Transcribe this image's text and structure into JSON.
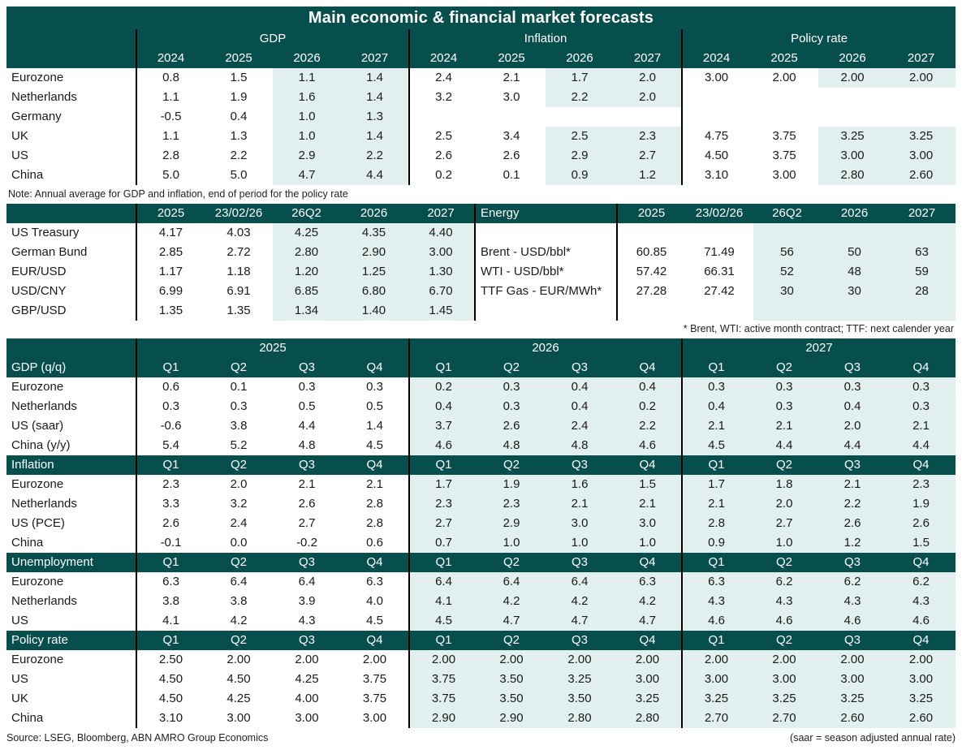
{
  "title": "Main economic & financial market forecasts",
  "colors": {
    "header_teal": "#074f4d",
    "forecast_highlight": "#e1f0ee"
  },
  "annual": {
    "groups": [
      "GDP",
      "Inflation",
      "Policy rate"
    ],
    "years": [
      "2024",
      "2025",
      "2026",
      "2027"
    ],
    "rows": [
      {
        "label": "Eurozone",
        "gdp": [
          "0.8",
          "1.5",
          "1.1",
          "1.4"
        ],
        "inflation": [
          "2.4",
          "2.1",
          "1.7",
          "2.0"
        ],
        "policy": [
          "3.00",
          "2.00",
          "2.00",
          "2.00"
        ]
      },
      {
        "label": "Netherlands",
        "gdp": [
          "1.1",
          "1.9",
          "1.6",
          "1.4"
        ],
        "inflation": [
          "3.2",
          "3.0",
          "2.2",
          "2.0"
        ],
        "policy": [
          "",
          "",
          "",
          ""
        ]
      },
      {
        "label": "Germany",
        "gdp": [
          "-0.5",
          "0.4",
          "1.0",
          "1.3"
        ],
        "inflation": [
          "",
          "",
          "",
          ""
        ],
        "policy": [
          "",
          "",
          "",
          ""
        ]
      },
      {
        "label": "UK",
        "gdp": [
          "1.1",
          "1.3",
          "1.0",
          "1.4"
        ],
        "inflation": [
          "2.5",
          "3.4",
          "2.5",
          "2.3"
        ],
        "policy": [
          "4.75",
          "3.75",
          "3.25",
          "3.25"
        ]
      },
      {
        "label": "US",
        "gdp": [
          "2.8",
          "2.2",
          "2.9",
          "2.2"
        ],
        "inflation": [
          "2.6",
          "2.6",
          "2.9",
          "2.7"
        ],
        "policy": [
          "4.50",
          "3.75",
          "3.00",
          "3.00"
        ]
      },
      {
        "label": "China",
        "gdp": [
          "5.0",
          "5.0",
          "4.7",
          "4.4"
        ],
        "inflation": [
          "0.2",
          "0.1",
          "0.9",
          "1.2"
        ],
        "policy": [
          "3.10",
          "3.00",
          "2.80",
          "2.60"
        ]
      }
    ],
    "note": "Note: Annual average for GDP and inflation, end of period for the policy rate"
  },
  "markets": {
    "headers": [
      "2025",
      "23/02/26",
      "26Q2",
      "2026",
      "2027"
    ],
    "energy_label": "Energy",
    "energy_headers": [
      "2025",
      "23/02/26",
      "26Q2",
      "2026",
      "2027"
    ],
    "rows": [
      {
        "label": "US Treasury",
        "values": [
          "4.17",
          "4.03",
          "4.25",
          "4.35",
          "4.40"
        ],
        "energy_label": "",
        "energy_values": [
          "",
          "",
          "",
          "",
          ""
        ]
      },
      {
        "label": "German Bund",
        "values": [
          "2.85",
          "2.72",
          "2.80",
          "2.90",
          "3.00"
        ],
        "energy_label": "Brent - USD/bbl*",
        "energy_values": [
          "60.85",
          "71.49",
          "56",
          "50",
          "63"
        ]
      },
      {
        "label": "EUR/USD",
        "values": [
          "1.17",
          "1.18",
          "1.20",
          "1.25",
          "1.30"
        ],
        "energy_label": "WTI - USD/bbl*",
        "energy_values": [
          "57.42",
          "66.31",
          "52",
          "48",
          "59"
        ]
      },
      {
        "label": "USD/CNY",
        "values": [
          "6.99",
          "6.91",
          "6.85",
          "6.80",
          "6.70"
        ],
        "energy_label": "TTF Gas - EUR/MWh*",
        "energy_values": [
          "27.28",
          "27.42",
          "30",
          "30",
          "28"
        ]
      },
      {
        "label": "GBP/USD",
        "values": [
          "1.35",
          "1.35",
          "1.34",
          "1.40",
          "1.45"
        ],
        "energy_label": "",
        "energy_values": [
          "",
          "",
          "",
          "",
          ""
        ]
      }
    ],
    "footnote": "* Brent, WTI: active month contract; TTF: next calender year"
  },
  "quarterly": {
    "years": [
      "2025",
      "2026",
      "2027"
    ],
    "quarters": [
      "Q1",
      "Q2",
      "Q3",
      "Q4"
    ],
    "sections": [
      {
        "label": "GDP (q/q)",
        "rows": [
          {
            "label": "Eurozone",
            "values": [
              "0.6",
              "0.1",
              "0.3",
              "0.3",
              "0.2",
              "0.3",
              "0.4",
              "0.4",
              "0.3",
              "0.3",
              "0.3",
              "0.3"
            ]
          },
          {
            "label": "Netherlands",
            "values": [
              "0.3",
              "0.3",
              "0.5",
              "0.5",
              "0.4",
              "0.3",
              "0.4",
              "0.2",
              "0.4",
              "0.3",
              "0.4",
              "0.3"
            ]
          },
          {
            "label": "US (saar)",
            "values": [
              "-0.6",
              "3.8",
              "4.4",
              "1.4",
              "3.7",
              "2.6",
              "2.4",
              "2.2",
              "2.1",
              "2.1",
              "2.0",
              "2.1"
            ]
          },
          {
            "label": "China (y/y)",
            "values": [
              "5.4",
              "5.2",
              "4.8",
              "4.5",
              "4.6",
              "4.8",
              "4.8",
              "4.6",
              "4.5",
              "4.4",
              "4.4",
              "4.4"
            ]
          }
        ]
      },
      {
        "label": "Inflation",
        "rows": [
          {
            "label": "Eurozone",
            "values": [
              "2.3",
              "2.0",
              "2.1",
              "2.1",
              "1.7",
              "1.9",
              "1.6",
              "1.5",
              "1.7",
              "1.8",
              "2.1",
              "2.3"
            ]
          },
          {
            "label": "Netherlands",
            "values": [
              "3.3",
              "3.2",
              "2.6",
              "2.8",
              "2.3",
              "2.3",
              "2.1",
              "2.1",
              "2.1",
              "2.0",
              "2.2",
              "1.9"
            ]
          },
          {
            "label": "US (PCE)",
            "values": [
              "2.6",
              "2.4",
              "2.7",
              "2.8",
              "2.7",
              "2.9",
              "3.0",
              "3.0",
              "2.8",
              "2.7",
              "2.6",
              "2.6"
            ]
          },
          {
            "label": "China",
            "values": [
              "-0.1",
              "0.0",
              "-0.2",
              "0.6",
              "0.7",
              "1.0",
              "1.0",
              "1.0",
              "0.9",
              "1.0",
              "1.2",
              "1.5"
            ]
          }
        ]
      },
      {
        "label": "Unemployment",
        "rows": [
          {
            "label": "Eurozone",
            "values": [
              "6.3",
              "6.4",
              "6.4",
              "6.3",
              "6.4",
              "6.4",
              "6.4",
              "6.3",
              "6.3",
              "6.2",
              "6.2",
              "6.2"
            ]
          },
          {
            "label": "Netherlands",
            "values": [
              "3.8",
              "3.8",
              "3.9",
              "4.0",
              "4.1",
              "4.2",
              "4.2",
              "4.2",
              "4.3",
              "4.3",
              "4.3",
              "4.3"
            ]
          },
          {
            "label": "US",
            "values": [
              "4.1",
              "4.2",
              "4.3",
              "4.5",
              "4.5",
              "4.7",
              "4.7",
              "4.7",
              "4.6",
              "4.6",
              "4.6",
              "4.6"
            ]
          }
        ]
      },
      {
        "label": "Policy rate",
        "rows": [
          {
            "label": "Eurozone",
            "values": [
              "2.50",
              "2.00",
              "2.00",
              "2.00",
              "2.00",
              "2.00",
              "2.00",
              "2.00",
              "2.00",
              "2.00",
              "2.00",
              "2.00"
            ]
          },
          {
            "label": "US",
            "values": [
              "4.50",
              "4.50",
              "4.25",
              "3.75",
              "3.75",
              "3.50",
              "3.25",
              "3.00",
              "3.00",
              "3.00",
              "3.00",
              "3.00"
            ]
          },
          {
            "label": "UK",
            "values": [
              "4.50",
              "4.25",
              "4.00",
              "3.75",
              "3.75",
              "3.50",
              "3.50",
              "3.25",
              "3.25",
              "3.25",
              "3.25",
              "3.25"
            ]
          },
          {
            "label": "China",
            "values": [
              "3.10",
              "3.00",
              "3.00",
              "3.00",
              "2.90",
              "2.90",
              "2.80",
              "2.80",
              "2.70",
              "2.70",
              "2.60",
              "2.60"
            ]
          }
        ]
      }
    ]
  },
  "footer": {
    "source": "Source: LSEG, Bloomberg, ABN AMRO Group Economics",
    "saar_note": "(saar = season adjusted annual rate)"
  }
}
